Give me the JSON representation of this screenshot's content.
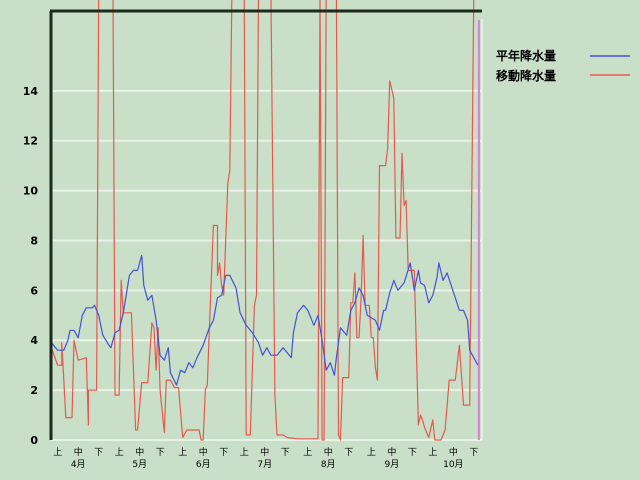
{
  "chart_data": {
    "type": "line",
    "title": "",
    "xlabel": "",
    "ylabel": "",
    "ylim": [
      0,
      17.2
    ],
    "yticks": [
      "0",
      "2",
      "4",
      "6",
      "8",
      "10",
      "12",
      "14"
    ],
    "grid": true,
    "legend_position": "top-right",
    "x_range": [
      "4/1",
      "10/31"
    ],
    "x_tick_labels": {
      "dekads": [
        "上",
        "中",
        "下"
      ],
      "months": [
        "4月",
        "5月",
        "6月",
        "7月",
        "8月",
        "9月",
        "10月"
      ]
    },
    "marker_line_date": "10/26",
    "colors": {
      "background": "#c9dfc7",
      "平年降水量": "#4352d6",
      "移動降水量": "#e55a4e",
      "marker": "#d77fd6",
      "frame": "#1c2a1c"
    },
    "series": [
      {
        "name": "平年降水量",
        "points": [
          [
            "4/1",
            3.9
          ],
          [
            "4/4",
            3.6
          ],
          [
            "4/7",
            3.6
          ],
          [
            "4/9",
            4.0
          ],
          [
            "4/10",
            4.4
          ],
          [
            "4/12",
            4.4
          ],
          [
            "4/14",
            4.1
          ],
          [
            "4/16",
            5.0
          ],
          [
            "4/18",
            5.3
          ],
          [
            "4/21",
            5.3
          ],
          [
            "4/22",
            5.4
          ],
          [
            "4/24",
            5.0
          ],
          [
            "4/26",
            4.2
          ],
          [
            "4/29",
            3.8
          ],
          [
            "4/30",
            3.7
          ],
          [
            "5/2",
            4.3
          ],
          [
            "5/4",
            4.4
          ],
          [
            "5/6",
            5.1
          ],
          [
            "5/9",
            6.6
          ],
          [
            "5/11",
            6.8
          ],
          [
            "5/13",
            6.8
          ],
          [
            "5/14",
            7.1
          ],
          [
            "5/15",
            7.4
          ],
          [
            "5/16",
            6.2
          ],
          [
            "5/18",
            5.6
          ],
          [
            "5/20",
            5.8
          ],
          [
            "5/22",
            4.8
          ],
          [
            "5/24",
            3.4
          ],
          [
            "5/26",
            3.2
          ],
          [
            "5/28",
            3.7
          ],
          [
            "5/29",
            2.7
          ],
          [
            "6/1",
            2.2
          ],
          [
            "6/3",
            2.8
          ],
          [
            "6/5",
            2.7
          ],
          [
            "6/7",
            3.1
          ],
          [
            "6/9",
            2.9
          ],
          [
            "6/11",
            3.3
          ],
          [
            "6/14",
            3.8
          ],
          [
            "6/17",
            4.5
          ],
          [
            "6/19",
            4.8
          ],
          [
            "6/21",
            5.7
          ],
          [
            "6/23",
            5.8
          ],
          [
            "6/25",
            6.6
          ],
          [
            "6/27",
            6.6
          ],
          [
            "6/30",
            6.1
          ],
          [
            "7/2",
            5.1
          ],
          [
            "7/5",
            4.6
          ],
          [
            "7/8",
            4.3
          ],
          [
            "7/11",
            3.9
          ],
          [
            "7/13",
            3.4
          ],
          [
            "7/15",
            3.7
          ],
          [
            "7/17",
            3.4
          ],
          [
            "7/20",
            3.4
          ],
          [
            "7/23",
            3.7
          ],
          [
            "7/26",
            3.4
          ],
          [
            "7/27",
            3.3
          ],
          [
            "7/28",
            4.3
          ],
          [
            "7/30",
            5.1
          ],
          [
            "8/1",
            5.3
          ],
          [
            "8/2",
            5.4
          ],
          [
            "8/4",
            5.2
          ],
          [
            "8/7",
            4.6
          ],
          [
            "8/9",
            5.0
          ],
          [
            "8/11",
            4.0
          ],
          [
            "8/13",
            2.8
          ],
          [
            "8/15",
            3.1
          ],
          [
            "8/17",
            2.6
          ],
          [
            "8/18",
            3.3
          ],
          [
            "8/20",
            4.5
          ],
          [
            "8/23",
            4.2
          ],
          [
            "8/25",
            5.2
          ],
          [
            "8/27",
            5.5
          ],
          [
            "8/29",
            6.1
          ],
          [
            "8/31",
            5.8
          ],
          [
            "9/2",
            5.0
          ],
          [
            "9/4",
            4.9
          ],
          [
            "9/6",
            4.8
          ],
          [
            "9/8",
            4.4
          ],
          [
            "9/10",
            5.2
          ],
          [
            "9/11",
            5.2
          ],
          [
            "9/13",
            5.9
          ],
          [
            "9/15",
            6.4
          ],
          [
            "9/17",
            6.0
          ],
          [
            "9/20",
            6.3
          ],
          [
            "9/23",
            7.1
          ],
          [
            "9/25",
            6.0
          ],
          [
            "9/27",
            6.8
          ],
          [
            "9/28",
            6.3
          ],
          [
            "9/30",
            6.2
          ],
          [
            "10/2",
            5.5
          ],
          [
            "10/4",
            5.8
          ],
          [
            "10/6",
            6.5
          ],
          [
            "10/7",
            7.1
          ],
          [
            "10/9",
            6.4
          ],
          [
            "10/11",
            6.7
          ],
          [
            "10/13",
            6.2
          ],
          [
            "10/15",
            5.7
          ],
          [
            "10/17",
            5.2
          ],
          [
            "10/19",
            5.2
          ],
          [
            "10/21",
            4.8
          ],
          [
            "10/22",
            3.6
          ],
          [
            "10/24",
            3.3
          ],
          [
            "10/26",
            3.0
          ]
        ]
      },
      {
        "name": "移動降水量",
        "points": [
          [
            "4/1",
            0
          ],
          [
            "4/1",
            3.7
          ],
          [
            "4/4",
            3.0
          ],
          [
            "4/6",
            3.0
          ],
          [
            "4/6",
            3.9
          ],
          [
            "4/8",
            0.9
          ],
          [
            "4/11",
            0.9
          ],
          [
            "4/12",
            4.0
          ],
          [
            "4/14",
            3.2
          ],
          [
            "4/18",
            3.3
          ],
          [
            "4/19",
            0.6
          ],
          [
            "4/19",
            2.0
          ],
          [
            "4/23",
            2.0
          ],
          [
            "4/24",
            18
          ],
          [
            "5/1",
            18
          ],
          [
            "5/2",
            1.8
          ],
          [
            "5/4",
            1.8
          ],
          [
            "5/5",
            6.4
          ],
          [
            "5/6",
            5.1
          ],
          [
            "5/10",
            5.1
          ],
          [
            "5/12",
            0.4
          ],
          [
            "5/13",
            0.4
          ],
          [
            "5/15",
            2.3
          ],
          [
            "5/18",
            2.3
          ],
          [
            "5/20",
            4.7
          ],
          [
            "5/21",
            4.5
          ],
          [
            "5/22",
            2.8
          ],
          [
            "5/23",
            4.5
          ],
          [
            "5/24",
            2.0
          ],
          [
            "5/26",
            0.3
          ],
          [
            "5/27",
            2.4
          ],
          [
            "5/29",
            2.4
          ],
          [
            "5/31",
            2.1
          ],
          [
            "6/2",
            2.1
          ],
          [
            "6/4",
            0.1
          ],
          [
            "6/6",
            0.4
          ],
          [
            "6/12",
            0.4
          ],
          [
            "6/13",
            0
          ],
          [
            "6/14",
            0
          ],
          [
            "6/15",
            2.0
          ],
          [
            "6/16",
            2.2
          ],
          [
            "6/17",
            4.4
          ],
          [
            "6/19",
            8.6
          ],
          [
            "6/21",
            8.6
          ],
          [
            "6/21",
            6.6
          ],
          [
            "6/22",
            7.1
          ],
          [
            "6/23",
            6.2
          ],
          [
            "6/24",
            5.8
          ],
          [
            "6/26",
            10.3
          ],
          [
            "6/27",
            10.8
          ],
          [
            "6/28",
            18
          ],
          [
            "7/4",
            18
          ],
          [
            "7/5",
            0.2
          ],
          [
            "7/7",
            0.2
          ],
          [
            "7/9",
            5.4
          ],
          [
            "7/10",
            5.8
          ],
          [
            "7/11",
            18
          ],
          [
            "7/17",
            18
          ],
          [
            "7/19",
            1.8
          ],
          [
            "7/20",
            0.2
          ],
          [
            "7/23",
            0.2
          ],
          [
            "7/25",
            0.1
          ],
          [
            "7/30",
            0.05
          ],
          [
            "8/9",
            0.05
          ],
          [
            "8/10",
            18
          ],
          [
            "8/11",
            0
          ],
          [
            "8/12",
            0
          ],
          [
            "8/13",
            18
          ],
          [
            "8/18",
            18
          ],
          [
            "8/19",
            0.2
          ],
          [
            "8/20",
            0
          ],
          [
            "8/21",
            2.5
          ],
          [
            "8/24",
            2.5
          ],
          [
            "8/25",
            5.5
          ],
          [
            "8/26",
            5.5
          ],
          [
            "8/27",
            6.7
          ],
          [
            "8/28",
            4.1
          ],
          [
            "8/29",
            4.1
          ],
          [
            "8/30",
            5.6
          ],
          [
            "8/31",
            8.2
          ],
          [
            "9/1",
            5.4
          ],
          [
            "9/3",
            5.4
          ],
          [
            "9/4",
            4.1
          ],
          [
            "9/5",
            4.1
          ],
          [
            "9/6",
            2.9
          ],
          [
            "9/7",
            2.4
          ],
          [
            "9/8",
            11.0
          ],
          [
            "9/11",
            11.0
          ],
          [
            "9/12",
            11.7
          ],
          [
            "9/13",
            14.4
          ],
          [
            "9/15",
            13.7
          ],
          [
            "9/16",
            8.1
          ],
          [
            "9/18",
            8.1
          ],
          [
            "9/19",
            11.5
          ],
          [
            "9/20",
            9.4
          ],
          [
            "9/21",
            9.6
          ],
          [
            "9/22",
            6.8
          ],
          [
            "9/25",
            6.8
          ],
          [
            "9/27",
            0.6
          ],
          [
            "9/28",
            1.0
          ],
          [
            "9/29",
            0.8
          ],
          [
            "9/30",
            0.5
          ],
          [
            "10/2",
            0.1
          ],
          [
            "10/4",
            0.8
          ],
          [
            "10/5",
            0
          ],
          [
            "10/8",
            0
          ],
          [
            "10/10",
            0.4
          ],
          [
            "10/12",
            2.4
          ],
          [
            "10/15",
            2.4
          ],
          [
            "10/17",
            3.8
          ],
          [
            "10/19",
            1.4
          ],
          [
            "10/22",
            1.4
          ],
          [
            "10/24",
            18
          ]
        ]
      }
    ]
  }
}
